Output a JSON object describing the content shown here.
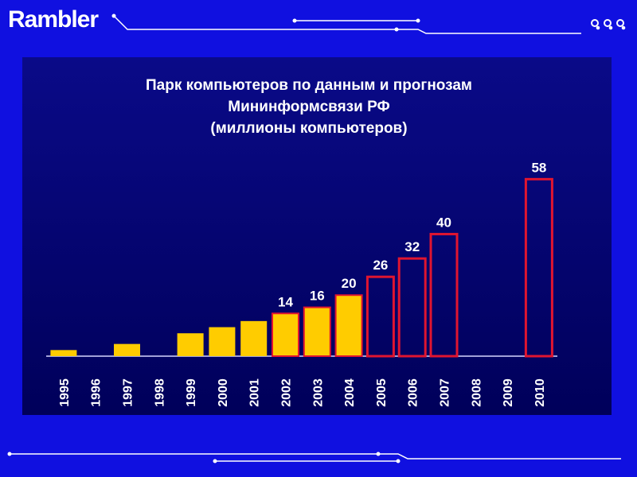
{
  "logo": {
    "text": "Rambler"
  },
  "colors": {
    "page_background": "#1010e0",
    "panel_background": "#00006e",
    "actual_fill": "#ffcc00",
    "actual_stroke": "#e01530",
    "forecast_stroke": "#e01530",
    "text": "#ffffff"
  },
  "chart_data": {
    "type": "bar",
    "title_lines": [
      "Парк компьютеров по данным и прогнозам",
      "Мининформсвязи РФ",
      "(миллионы компьютеров)"
    ],
    "categories": [
      "1995",
      "1996",
      "1997",
      "1998",
      "1999",
      "2000",
      "2001",
      "2002",
      "2003",
      "2004",
      "2005",
      "2006",
      "2007",
      "2008",
      "2009",
      "2010"
    ],
    "values": [
      2,
      null,
      4,
      null,
      7.5,
      9.5,
      11.5,
      14,
      16,
      20,
      26,
      32,
      40,
      null,
      null,
      58
    ],
    "kinds": [
      "actual",
      "actual",
      "actual",
      "actual",
      "actual",
      "actual",
      "actual",
      "actual",
      "actual",
      "actual",
      "forecast",
      "forecast",
      "forecast",
      "forecast",
      "forecast",
      "forecast"
    ],
    "data_labels": [
      null,
      null,
      null,
      null,
      null,
      null,
      null,
      "14",
      "16",
      "20",
      "26",
      "32",
      "40",
      null,
      null,
      "58"
    ],
    "ylim": [
      0,
      62
    ],
    "xlabel": "",
    "ylabel": "",
    "grid": false,
    "legend": "none"
  }
}
